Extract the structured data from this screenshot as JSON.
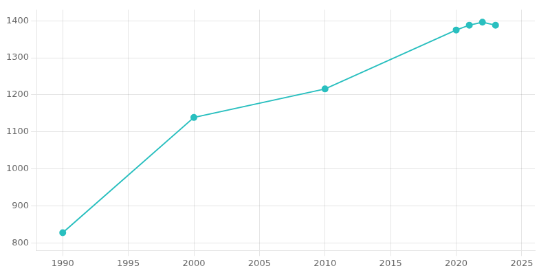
{
  "chart_data": {
    "type": "line",
    "x": [
      1990,
      2000,
      2010,
      2020,
      2021,
      2022,
      2023
    ],
    "values": [
      828,
      1139,
      1216,
      1375,
      1388,
      1396,
      1388
    ],
    "color": "#29BFBF",
    "marker": "circle",
    "xlim": [
      1988,
      2026
    ],
    "ylim": [
      780,
      1430
    ],
    "xticks": [
      1990,
      1995,
      2000,
      2005,
      2010,
      2015,
      2020,
      2025
    ],
    "yticks": [
      800,
      900,
      1000,
      1100,
      1200,
      1300,
      1400
    ],
    "grid": true
  }
}
